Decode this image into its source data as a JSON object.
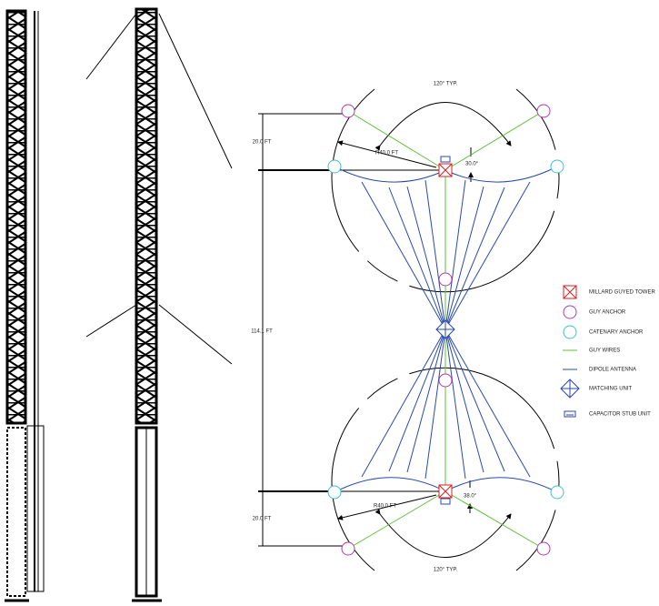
{
  "dimensions": {
    "top_arc": "120° TYP.",
    "top_spacing": "20.0 FT",
    "top_radius": "R40.0 FT",
    "top_angle": "30.0°",
    "span": "114.1 FT",
    "bottom_radius": "R40.0 FT",
    "bottom_angle": "38.0°",
    "bottom_spacing": "20.0 FT",
    "bottom_arc": "120° TYP."
  },
  "legend": [
    "MILLARD GUYED TOWER",
    "GUY ANCHOR",
    "CATENARY ANCHOR",
    "GUY WIRES",
    "DIPOLE ANTENNA",
    "MATCHING UNIT",
    "CAPACITOR STUB UNIT"
  ]
}
